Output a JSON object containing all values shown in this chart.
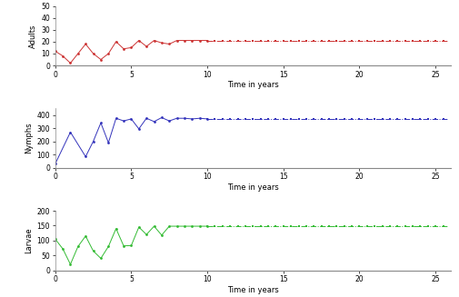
{
  "adults_transient_x": [
    0,
    0.5,
    1,
    1.5,
    2,
    2.5,
    3,
    3.5,
    4,
    4.5,
    5,
    5.5,
    6,
    6.5,
    7,
    7.5,
    8,
    8.5,
    9,
    9.5,
    10
  ],
  "adults_transient_y": [
    12,
    8,
    2,
    10,
    18,
    10,
    5,
    10,
    20,
    14,
    15,
    21,
    16,
    21,
    19,
    18,
    21,
    21,
    21,
    21,
    21
  ],
  "nymphs_transient_x": [
    0,
    1,
    2,
    2.5,
    3,
    3.5,
    4,
    4.5,
    5,
    5.5,
    6,
    6.5,
    7,
    7.5,
    8,
    8.5,
    9,
    9.5,
    10
  ],
  "nymphs_transient_y": [
    30,
    270,
    85,
    200,
    340,
    190,
    375,
    355,
    370,
    295,
    375,
    350,
    380,
    355,
    375,
    375,
    370,
    375,
    370
  ],
  "larvae_transient_x": [
    0,
    0.5,
    1,
    1.5,
    2,
    2.5,
    3,
    3.5,
    4,
    4.5,
    5,
    5.5,
    6,
    6.5,
    7,
    7.5,
    8,
    8.5,
    9,
    9.5,
    10
  ],
  "larvae_transient_y": [
    105,
    72,
    20,
    80,
    115,
    65,
    40,
    80,
    140,
    82,
    83,
    145,
    120,
    148,
    118,
    148,
    148,
    148,
    148,
    148,
    148
  ],
  "adults_steady_val": 21,
  "nymphs_steady_val": 370,
  "larvae_steady_val": 148,
  "adults_color": "#cc3333",
  "nymphs_color": "#3333bb",
  "larvae_color": "#33bb33",
  "xlabel": "Time in years",
  "adults_ylabel": "Adults",
  "nymphs_ylabel": "Nymphs",
  "larvae_ylabel": "Larvae",
  "adults_ylim": [
    0,
    50
  ],
  "nymphs_ylim": [
    0,
    450
  ],
  "larvae_ylim": [
    0,
    200
  ],
  "xlim": [
    0,
    26
  ],
  "xticks": [
    0,
    5,
    10,
    15,
    20,
    25
  ],
  "adults_yticks": [
    0,
    10,
    20,
    30,
    40,
    50
  ],
  "nymphs_yticks": [
    0,
    100,
    200,
    300,
    400
  ],
  "larvae_yticks": [
    0,
    50,
    100,
    150,
    200
  ],
  "linewidth": 0.7,
  "markersize": 2.0
}
